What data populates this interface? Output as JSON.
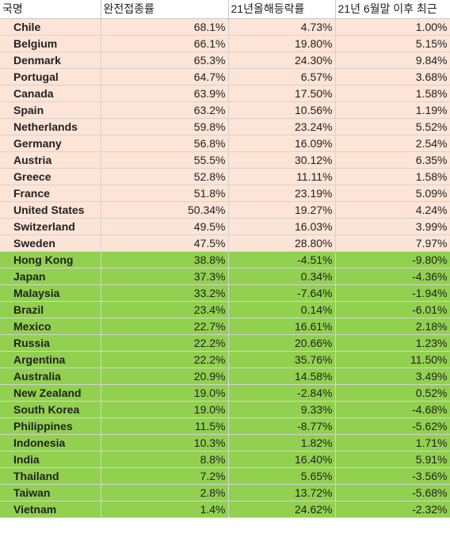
{
  "headers": [
    "국명",
    "완전접종률",
    "21년올해등락률",
    "21년 6월말 이후 최근"
  ],
  "colors": {
    "group_a": "#fce4d6",
    "group_b": "#92d050"
  },
  "rows": [
    {
      "group": "a",
      "country": "Chile",
      "vaccination": "68.1%",
      "ytd": "4.73%",
      "since_june": "1.00%"
    },
    {
      "group": "a",
      "country": "Belgium",
      "vaccination": "66.1%",
      "ytd": "19.80%",
      "since_june": "5.15%"
    },
    {
      "group": "a",
      "country": "Denmark",
      "vaccination": "65.3%",
      "ytd": "24.30%",
      "since_june": "9.84%"
    },
    {
      "group": "a",
      "country": "Portugal",
      "vaccination": "64.7%",
      "ytd": "6.57%",
      "since_june": "3.68%"
    },
    {
      "group": "a",
      "country": "Canada",
      "vaccination": "63.9%",
      "ytd": "17.50%",
      "since_june": "1.58%"
    },
    {
      "group": "a",
      "country": "Spain",
      "vaccination": "63.2%",
      "ytd": "10.56%",
      "since_june": "1.19%"
    },
    {
      "group": "a",
      "country": "Netherlands",
      "vaccination": "59.8%",
      "ytd": "23.24%",
      "since_june": "5.52%"
    },
    {
      "group": "a",
      "country": "Germany",
      "vaccination": "56.8%",
      "ytd": "16.09%",
      "since_june": "2.54%"
    },
    {
      "group": "a",
      "country": "Austria",
      "vaccination": "55.5%",
      "ytd": "30.12%",
      "since_june": "6.35%"
    },
    {
      "group": "a",
      "country": "Greece",
      "vaccination": "52.8%",
      "ytd": "11.11%",
      "since_june": "1.58%"
    },
    {
      "group": "a",
      "country": "France",
      "vaccination": "51.8%",
      "ytd": "23.19%",
      "since_june": "5.09%"
    },
    {
      "group": "a",
      "country": "United States",
      "vaccination": "50.34%",
      "ytd": "19.27%",
      "since_june": "4.24%"
    },
    {
      "group": "a",
      "country": "Switzerland",
      "vaccination": "49.5%",
      "ytd": "16.03%",
      "since_june": "3.99%"
    },
    {
      "group": "a",
      "country": "Sweden",
      "vaccination": "47.5%",
      "ytd": "28.80%",
      "since_june": "7.97%"
    },
    {
      "group": "b",
      "country": "Hong Kong",
      "vaccination": "38.8%",
      "ytd": "-4.51%",
      "since_june": "-9.80%"
    },
    {
      "group": "b",
      "country": "Japan",
      "vaccination": "37.3%",
      "ytd": "0.34%",
      "since_june": "-4.36%"
    },
    {
      "group": "b",
      "country": "Malaysia",
      "vaccination": "33.2%",
      "ytd": "-7.64%",
      "since_june": "-1.94%"
    },
    {
      "group": "b",
      "country": "Brazil",
      "vaccination": "23.4%",
      "ytd": "0.14%",
      "since_june": "-6.01%"
    },
    {
      "group": "b",
      "country": "Mexico",
      "vaccination": "22.7%",
      "ytd": "16.61%",
      "since_june": "2.18%"
    },
    {
      "group": "b",
      "country": "Russia",
      "vaccination": "22.2%",
      "ytd": "20.66%",
      "since_june": "1.23%"
    },
    {
      "group": "b",
      "country": "Argentina",
      "vaccination": "22.2%",
      "ytd": "35.76%",
      "since_june": "11.50%"
    },
    {
      "group": "b",
      "country": "Australia",
      "vaccination": "20.9%",
      "ytd": "14.58%",
      "since_june": "3.49%"
    },
    {
      "group": "b",
      "country": "New Zealand",
      "vaccination": "19.0%",
      "ytd": "-2.84%",
      "since_june": "0.52%"
    },
    {
      "group": "b",
      "country": "South Korea",
      "vaccination": "19.0%",
      "ytd": "9.33%",
      "since_june": "-4.68%"
    },
    {
      "group": "b",
      "country": "Philippines",
      "vaccination": "11.5%",
      "ytd": "-8.77%",
      "since_june": "-5.62%"
    },
    {
      "group": "b",
      "country": "Indonesia",
      "vaccination": "10.3%",
      "ytd": "1.82%",
      "since_june": "1.71%"
    },
    {
      "group": "b",
      "country": "India",
      "vaccination": "8.8%",
      "ytd": "16.40%",
      "since_june": "5.91%"
    },
    {
      "group": "b",
      "country": "Thailand",
      "vaccination": "7.2%",
      "ytd": "5.65%",
      "since_june": "-3.56%"
    },
    {
      "group": "b",
      "country": "Taiwan",
      "vaccination": "2.8%",
      "ytd": "13.72%",
      "since_june": "-5.68%"
    },
    {
      "group": "b",
      "country": "Vietnam",
      "vaccination": "1.4%",
      "ytd": "24.62%",
      "since_june": "-2.32%"
    }
  ]
}
